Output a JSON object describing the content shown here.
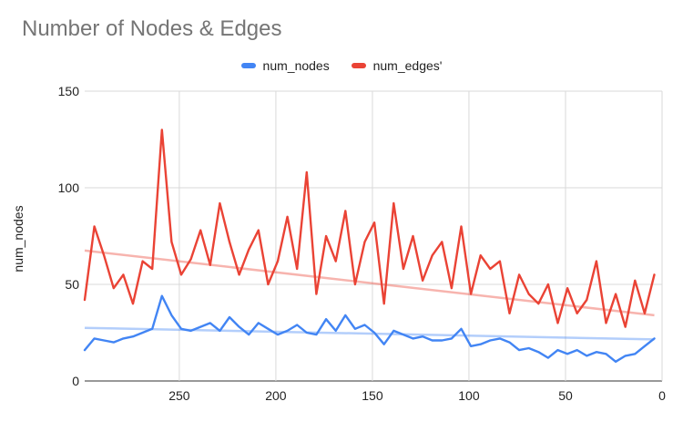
{
  "chart_data": {
    "type": "line",
    "title": "Number of Nodes & Edges",
    "xlabel": "",
    "ylabel": "num_nodes",
    "xlim": [
      299,
      0
    ],
    "ylim": [
      0,
      150
    ],
    "x_ticks": [
      "250",
      "200",
      "150",
      "100",
      "50",
      "0"
    ],
    "y_ticks": [
      "0",
      "50",
      "100",
      "150"
    ],
    "grid": true,
    "legend_position": "top",
    "trendlines": true,
    "series": [
      {
        "name": "num_nodes",
        "color": "#4285F4",
        "x_start": 299,
        "x_step": -5,
        "values": [
          16,
          22,
          21,
          20,
          22,
          23,
          25,
          27,
          44,
          34,
          27,
          26,
          28,
          30,
          26,
          33,
          28,
          24,
          30,
          27,
          24,
          26,
          29,
          25,
          24,
          32,
          26,
          34,
          27,
          29,
          25,
          19,
          26,
          24,
          22,
          23,
          21,
          21,
          22,
          27,
          18,
          19,
          21,
          22,
          20,
          16,
          17,
          15,
          12,
          16,
          14,
          16,
          13,
          15,
          14,
          10,
          13,
          14,
          18,
          22
        ],
        "trend": [
          27.5,
          21.5
        ]
      },
      {
        "name": "num_edges'",
        "color": "#EA4335",
        "x_start": 299,
        "x_step": -5,
        "values": [
          42,
          80,
          65,
          48,
          55,
          40,
          62,
          58,
          130,
          72,
          55,
          63,
          78,
          60,
          92,
          72,
          55,
          68,
          78,
          50,
          62,
          85,
          58,
          108,
          45,
          75,
          62,
          88,
          50,
          72,
          82,
          40,
          92,
          58,
          75,
          52,
          65,
          72,
          48,
          80,
          45,
          65,
          58,
          62,
          35,
          55,
          45,
          40,
          50,
          30,
          48,
          35,
          42,
          62,
          30,
          45,
          28,
          52,
          35,
          55
        ],
        "trend": [
          67.5,
          34
        ]
      }
    ]
  }
}
